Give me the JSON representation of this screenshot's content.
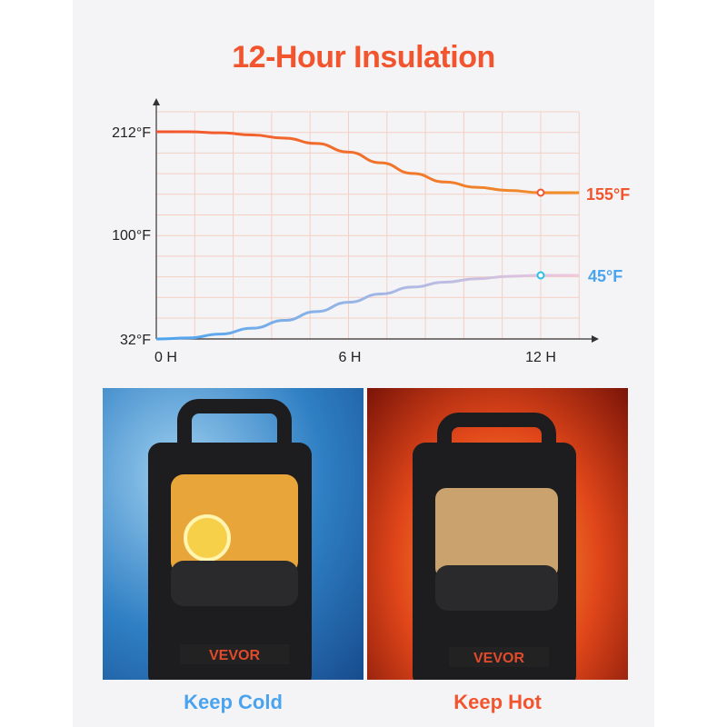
{
  "title": "12-Hour Insulation",
  "chart_data": {
    "type": "line",
    "title": "12-Hour Insulation",
    "xlabel": "",
    "ylabel": "",
    "x_ticks": [
      "0 H",
      "6 H",
      "12 H"
    ],
    "y_ticks": [
      "212°F",
      "100°F",
      "32°F"
    ],
    "xlim": [
      0,
      13.2
    ],
    "grid": true,
    "series": [
      {
        "name": "hot",
        "color": "#f2542d",
        "end_color": "#f0902a",
        "x": [
          0,
          1,
          2,
          3,
          4,
          5,
          6,
          7,
          8,
          9,
          10,
          11,
          12,
          13.2
        ],
        "y": [
          212,
          212,
          211,
          209,
          206,
          201,
          193,
          183,
          173,
          165,
          160,
          157,
          155,
          155
        ],
        "marker_x": 12,
        "marker_label": "155°F"
      },
      {
        "name": "cold",
        "color": "#4aa3ee",
        "end_color": "#f2c8dc",
        "x": [
          0,
          1,
          2,
          3,
          4,
          5,
          6,
          7,
          8,
          9,
          10,
          11,
          12,
          13.2
        ],
        "y": [
          32,
          32.2,
          33,
          34.2,
          35.8,
          37.6,
          39.5,
          41.2,
          42.6,
          43.6,
          44.3,
          44.8,
          45,
          45
        ],
        "marker_x": 12,
        "marker_label": "45°F"
      }
    ]
  },
  "photos": [
    {
      "caption": "Keep Cold",
      "color": "#4aa3ee",
      "brand": "VEVOR"
    },
    {
      "caption": "Keep Hot",
      "color": "#f2542d",
      "brand": "VEVOR"
    }
  ]
}
